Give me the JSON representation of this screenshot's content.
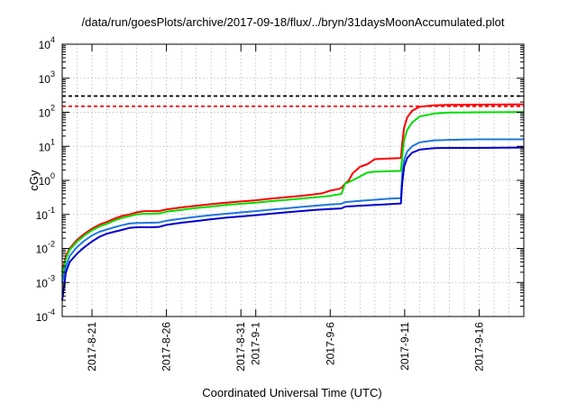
{
  "chart_data": {
    "type": "line",
    "title": "/data/run/goesPlots/archive/2017-09-18/flux/../bryn/31daysMoonAccumulated.plot",
    "xlabel": "Coordinated Universal Time (UTC)",
    "ylabel": "cGy",
    "y_scale": "log",
    "ylim": [
      0.0001,
      10000
    ],
    "xlim": [
      "2017-08-19",
      "2017-09-19"
    ],
    "grid": true,
    "y_ticks": [
      {
        "base": "10",
        "exp": "-4"
      },
      {
        "base": "10",
        "exp": "-3"
      },
      {
        "base": "10",
        "exp": "-2"
      },
      {
        "base": "10",
        "exp": "-1"
      },
      {
        "base": "10",
        "exp": "0"
      },
      {
        "base": "10",
        "exp": "1"
      },
      {
        "base": "10",
        "exp": "2"
      },
      {
        "base": "10",
        "exp": "3"
      },
      {
        "base": "10",
        "exp": "4"
      }
    ],
    "x_ticks": [
      {
        "date": "2017-08-21",
        "label": "2017-8-21"
      },
      {
        "date": "2017-08-26",
        "label": "2017-8-26"
      },
      {
        "date": "2017-08-31",
        "label": "2017-8-31"
      },
      {
        "date": "2017-09-01",
        "label": "2017-9-1"
      },
      {
        "date": "2017-09-06",
        "label": "2017-9-6"
      },
      {
        "date": "2017-09-11",
        "label": "2017-9-11"
      },
      {
        "date": "2017-09-16",
        "label": "2017-9-16"
      }
    ],
    "reference_lines": [
      {
        "y": 300,
        "color": "#000000",
        "style": "dashed"
      },
      {
        "y": 150,
        "color": "#ff0000",
        "style": "dashed"
      }
    ],
    "series": [
      {
        "color": "#ff0000",
        "points": [
          [
            "2017-08-19T00:00",
            0.002
          ],
          [
            "2017-08-19T06:00",
            0.006
          ],
          [
            "2017-08-19T12:00",
            0.01
          ],
          [
            "2017-08-20T00:00",
            0.018
          ],
          [
            "2017-08-20T12:00",
            0.027
          ],
          [
            "2017-08-21T00:00",
            0.038
          ],
          [
            "2017-08-21T12:00",
            0.05
          ],
          [
            "2017-08-22T00:00",
            0.06
          ],
          [
            "2017-08-22T12:00",
            0.075
          ],
          [
            "2017-08-23T00:00",
            0.09
          ],
          [
            "2017-08-23T12:00",
            0.1
          ],
          [
            "2017-08-24T00:00",
            0.115
          ],
          [
            "2017-08-24T12:00",
            0.125
          ],
          [
            "2017-08-25T00:00",
            0.125
          ],
          [
            "2017-08-25T12:00",
            0.125
          ],
          [
            "2017-08-26T00:00",
            0.14
          ],
          [
            "2017-08-27T00:00",
            0.16
          ],
          [
            "2017-08-28T00:00",
            0.18
          ],
          [
            "2017-08-29T00:00",
            0.2
          ],
          [
            "2017-08-30T00:00",
            0.22
          ],
          [
            "2017-08-31T00:00",
            0.24
          ],
          [
            "2017-09-01T00:00",
            0.26
          ],
          [
            "2017-09-02T00:00",
            0.29
          ],
          [
            "2017-09-03T00:00",
            0.32
          ],
          [
            "2017-09-04T00:00",
            0.35
          ],
          [
            "2017-09-05T00:00",
            0.39
          ],
          [
            "2017-09-05T12:00",
            0.42
          ],
          [
            "2017-09-06T00:00",
            0.5
          ],
          [
            "2017-09-06T12:00",
            0.55
          ],
          [
            "2017-09-06T18:00",
            0.6
          ],
          [
            "2017-09-07T00:00",
            0.8
          ],
          [
            "2017-09-07T06:00",
            1.0
          ],
          [
            "2017-09-07T12:00",
            1.6
          ],
          [
            "2017-09-08T00:00",
            2.5
          ],
          [
            "2017-09-08T12:00",
            3.0
          ],
          [
            "2017-09-09T00:00",
            4.2
          ],
          [
            "2017-09-10T00:00",
            4.4
          ],
          [
            "2017-09-10T18:00",
            4.5
          ],
          [
            "2017-09-10T20:00",
            12
          ],
          [
            "2017-09-10T23:00",
            35
          ],
          [
            "2017-09-11T04:00",
            70
          ],
          [
            "2017-09-11T12:00",
            110
          ],
          [
            "2017-09-12T00:00",
            145
          ],
          [
            "2017-09-13T00:00",
            160
          ],
          [
            "2017-09-14T00:00",
            165
          ],
          [
            "2017-09-16T00:00",
            168
          ],
          [
            "2017-09-19T00:00",
            170
          ]
        ]
      },
      {
        "color": "#00dd00",
        "points": [
          [
            "2017-08-19T00:00",
            0.0015
          ],
          [
            "2017-08-19T06:00",
            0.005
          ],
          [
            "2017-08-19T12:00",
            0.009
          ],
          [
            "2017-08-20T00:00",
            0.016
          ],
          [
            "2017-08-20T12:00",
            0.024
          ],
          [
            "2017-08-21T00:00",
            0.034
          ],
          [
            "2017-08-21T12:00",
            0.044
          ],
          [
            "2017-08-22T00:00",
            0.053
          ],
          [
            "2017-08-22T12:00",
            0.066
          ],
          [
            "2017-08-23T00:00",
            0.078
          ],
          [
            "2017-08-23T12:00",
            0.088
          ],
          [
            "2017-08-24T00:00",
            0.1
          ],
          [
            "2017-08-24T12:00",
            0.105
          ],
          [
            "2017-08-25T00:00",
            0.105
          ],
          [
            "2017-08-25T12:00",
            0.106
          ],
          [
            "2017-08-26T00:00",
            0.12
          ],
          [
            "2017-08-27T00:00",
            0.135
          ],
          [
            "2017-08-28T00:00",
            0.155
          ],
          [
            "2017-08-29T00:00",
            0.17
          ],
          [
            "2017-08-30T00:00",
            0.19
          ],
          [
            "2017-08-31T00:00",
            0.205
          ],
          [
            "2017-09-01T00:00",
            0.22
          ],
          [
            "2017-09-02T00:00",
            0.245
          ],
          [
            "2017-09-03T00:00",
            0.265
          ],
          [
            "2017-09-04T00:00",
            0.29
          ],
          [
            "2017-09-05T00:00",
            0.32
          ],
          [
            "2017-09-06T00:00",
            0.35
          ],
          [
            "2017-09-06T18:00",
            0.4
          ],
          [
            "2017-09-07T00:00",
            0.8
          ],
          [
            "2017-09-07T12:00",
            1.0
          ],
          [
            "2017-09-08T00:00",
            1.3
          ],
          [
            "2017-09-08T12:00",
            1.7
          ],
          [
            "2017-09-09T00:00",
            1.8
          ],
          [
            "2017-09-10T00:00",
            1.85
          ],
          [
            "2017-09-10T18:00",
            1.9
          ],
          [
            "2017-09-10T20:00",
            5
          ],
          [
            "2017-09-10T23:00",
            15
          ],
          [
            "2017-09-11T04:00",
            30
          ],
          [
            "2017-09-11T12:00",
            50
          ],
          [
            "2017-09-12T00:00",
            75
          ],
          [
            "2017-09-13T00:00",
            92
          ],
          [
            "2017-09-14T00:00",
            98
          ],
          [
            "2017-09-16T00:00",
            100
          ],
          [
            "2017-09-19T00:00",
            101
          ]
        ]
      },
      {
        "color": "#1e78dc",
        "points": [
          [
            "2017-08-19T00:00",
            0.001
          ],
          [
            "2017-08-19T06:00",
            0.003
          ],
          [
            "2017-08-19T12:00",
            0.006
          ],
          [
            "2017-08-20T00:00",
            0.011
          ],
          [
            "2017-08-20T12:00",
            0.017
          ],
          [
            "2017-08-21T00:00",
            0.024
          ],
          [
            "2017-08-21T12:00",
            0.031
          ],
          [
            "2017-08-22T00:00",
            0.036
          ],
          [
            "2017-08-22T12:00",
            0.042
          ],
          [
            "2017-08-23T00:00",
            0.048
          ],
          [
            "2017-08-23T12:00",
            0.054
          ],
          [
            "2017-08-24T00:00",
            0.056
          ],
          [
            "2017-08-25T00:00",
            0.057
          ],
          [
            "2017-08-25T12:00",
            0.058
          ],
          [
            "2017-08-26T00:00",
            0.065
          ],
          [
            "2017-08-27T00:00",
            0.075
          ],
          [
            "2017-08-28T00:00",
            0.085
          ],
          [
            "2017-08-29T00:00",
            0.095
          ],
          [
            "2017-08-30T00:00",
            0.105
          ],
          [
            "2017-08-31T00:00",
            0.115
          ],
          [
            "2017-09-01T00:00",
            0.125
          ],
          [
            "2017-09-02T00:00",
            0.138
          ],
          [
            "2017-09-03T00:00",
            0.15
          ],
          [
            "2017-09-04T00:00",
            0.165
          ],
          [
            "2017-09-05T00:00",
            0.18
          ],
          [
            "2017-09-06T00:00",
            0.195
          ],
          [
            "2017-09-06T18:00",
            0.205
          ],
          [
            "2017-09-07T00:00",
            0.23
          ],
          [
            "2017-09-08T00:00",
            0.25
          ],
          [
            "2017-09-09T00:00",
            0.27
          ],
          [
            "2017-09-10T00:00",
            0.29
          ],
          [
            "2017-09-10T18:00",
            0.3
          ],
          [
            "2017-09-10T20:00",
            1.5
          ],
          [
            "2017-09-10T23:00",
            4
          ],
          [
            "2017-09-11T04:00",
            7
          ],
          [
            "2017-09-11T12:00",
            10
          ],
          [
            "2017-09-12T00:00",
            13
          ],
          [
            "2017-09-13T00:00",
            15
          ],
          [
            "2017-09-14T00:00",
            15.5
          ],
          [
            "2017-09-16T00:00",
            16
          ],
          [
            "2017-09-19T00:00",
            16
          ]
        ]
      },
      {
        "color": "#0000cc",
        "points": [
          [
            "2017-08-19T00:00",
            0.0003
          ],
          [
            "2017-08-19T06:00",
            0.002
          ],
          [
            "2017-08-19T12:00",
            0.004
          ],
          [
            "2017-08-20T00:00",
            0.007
          ],
          [
            "2017-08-20T12:00",
            0.011
          ],
          [
            "2017-08-21T00:00",
            0.016
          ],
          [
            "2017-08-21T12:00",
            0.022
          ],
          [
            "2017-08-22T00:00",
            0.027
          ],
          [
            "2017-08-22T12:00",
            0.031
          ],
          [
            "2017-08-23T00:00",
            0.035
          ],
          [
            "2017-08-23T12:00",
            0.04
          ],
          [
            "2017-08-24T00:00",
            0.042
          ],
          [
            "2017-08-25T00:00",
            0.042
          ],
          [
            "2017-08-25T12:00",
            0.043
          ],
          [
            "2017-08-26T00:00",
            0.049
          ],
          [
            "2017-08-27T00:00",
            0.057
          ],
          [
            "2017-08-28T00:00",
            0.064
          ],
          [
            "2017-08-29T00:00",
            0.072
          ],
          [
            "2017-08-30T00:00",
            0.08
          ],
          [
            "2017-08-31T00:00",
            0.087
          ],
          [
            "2017-09-01T00:00",
            0.095
          ],
          [
            "2017-09-02T00:00",
            0.105
          ],
          [
            "2017-09-03T00:00",
            0.115
          ],
          [
            "2017-09-04T00:00",
            0.125
          ],
          [
            "2017-09-05T00:00",
            0.135
          ],
          [
            "2017-09-06T00:00",
            0.145
          ],
          [
            "2017-09-06T18:00",
            0.15
          ],
          [
            "2017-09-07T00:00",
            0.17
          ],
          [
            "2017-09-08T00:00",
            0.18
          ],
          [
            "2017-09-09T00:00",
            0.19
          ],
          [
            "2017-09-10T00:00",
            0.2
          ],
          [
            "2017-09-10T18:00",
            0.21
          ],
          [
            "2017-09-10T20:00",
            0.8
          ],
          [
            "2017-09-10T23:00",
            2.5
          ],
          [
            "2017-09-11T04:00",
            4.5
          ],
          [
            "2017-09-11T12:00",
            6.5
          ],
          [
            "2017-09-12T00:00",
            8
          ],
          [
            "2017-09-13T00:00",
            8.8
          ],
          [
            "2017-09-14T00:00",
            9
          ],
          [
            "2017-09-16T00:00",
            9
          ],
          [
            "2017-09-19T00:00",
            9.2
          ]
        ]
      }
    ]
  }
}
